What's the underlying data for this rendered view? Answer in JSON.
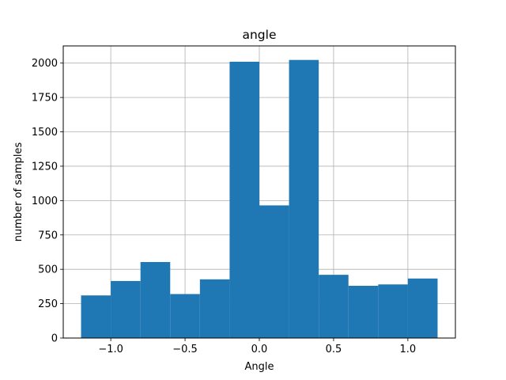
{
  "chart_data": {
    "type": "bar",
    "title": "angle",
    "xlabel": "Angle",
    "ylabel": "number of samples",
    "bins": [
      {
        "x0": -1.2,
        "x1": -1.0,
        "value": 310
      },
      {
        "x0": -1.0,
        "x1": -0.8,
        "value": 415
      },
      {
        "x0": -0.8,
        "x1": -0.6,
        "value": 553
      },
      {
        "x0": -0.6,
        "x1": -0.4,
        "value": 320
      },
      {
        "x0": -0.4,
        "x1": -0.2,
        "value": 427
      },
      {
        "x0": -0.2,
        "x1": 0.0,
        "value": 2010
      },
      {
        "x0": 0.0,
        "x1": 0.2,
        "value": 965
      },
      {
        "x0": 0.2,
        "x1": 0.4,
        "value": 2023
      },
      {
        "x0": 0.4,
        "x1": 0.6,
        "value": 460
      },
      {
        "x0": 0.6,
        "x1": 0.8,
        "value": 380
      },
      {
        "x0": 0.8,
        "x1": 1.0,
        "value": 390
      },
      {
        "x0": 1.0,
        "x1": 1.2,
        "value": 433
      }
    ],
    "xlim": [
      -1.32,
      1.32
    ],
    "ylim": [
      0,
      2125
    ],
    "xticks": [
      -1.0,
      -0.5,
      0.0,
      0.5,
      1.0
    ],
    "xtick_labels": [
      "−1.0",
      "−0.5",
      "0.0",
      "0.5",
      "1.0"
    ],
    "yticks": [
      0,
      250,
      500,
      750,
      1000,
      1250,
      1500,
      1750,
      2000
    ],
    "ytick_labels": [
      "0",
      "250",
      "500",
      "750",
      "1000",
      "1250",
      "1500",
      "1750",
      "2000"
    ],
    "grid": true,
    "bar_color": "#1f77b4",
    "grid_color": "#b0b0b0"
  }
}
